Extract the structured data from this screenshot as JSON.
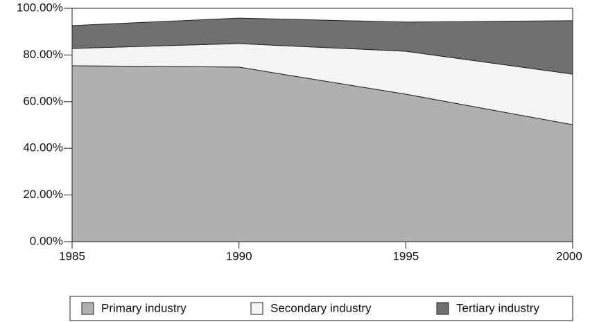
{
  "chart_data": {
    "type": "area",
    "stacked": true,
    "x": [
      1985,
      1990,
      1995,
      2000
    ],
    "series": [
      {
        "name": "Primary industry",
        "color": "#b0b0b0",
        "values": [
          75.4,
          74.8,
          63.2,
          50.1
        ]
      },
      {
        "name": "Secondary industry",
        "color": "#f4f4f4",
        "values": [
          7.4,
          10.1,
          18.4,
          21.7
        ]
      },
      {
        "name": "Tertiary industry",
        "color": "#707070",
        "values": [
          9.8,
          10.9,
          12.5,
          22.9
        ]
      }
    ],
    "xlim": [
      1985,
      2000
    ],
    "xticks": [
      1985,
      1990,
      1995,
      2000
    ],
    "ylim": [
      0,
      100
    ],
    "yticks": [
      {
        "value": 0,
        "label": "0.00%"
      },
      {
        "value": 20,
        "label": "20.00%"
      },
      {
        "value": 40,
        "label": "40.00%"
      },
      {
        "value": 60,
        "label": "60.00%"
      },
      {
        "value": 80,
        "label": "80.00%"
      },
      {
        "value": 100,
        "label": "100.00%"
      }
    ],
    "legend": "bottom"
  }
}
